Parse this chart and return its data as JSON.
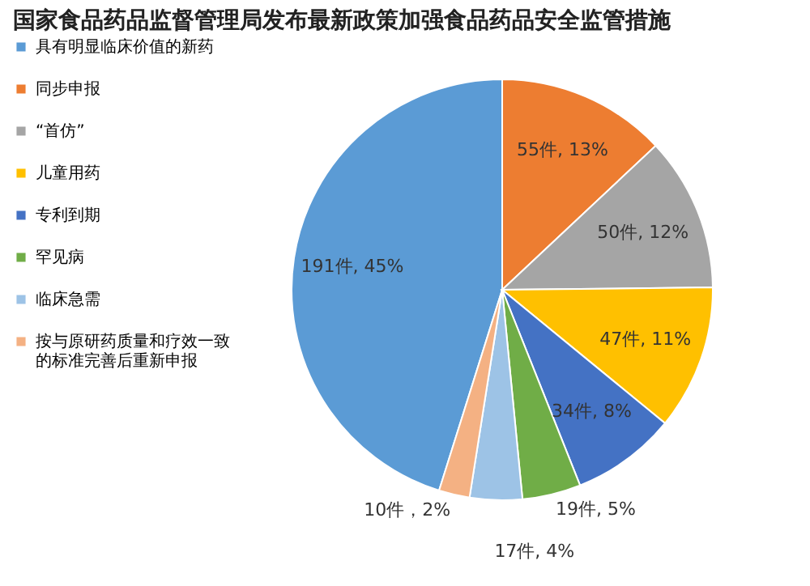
{
  "chart_data": {
    "type": "pie",
    "title": "国家食品药品监督管理局发布最新政策加强食品药品安全监管措施",
    "categories": [
      "具有明显临床价值的新药",
      "同步申报",
      "“首仿”",
      "儿童用药",
      "专利到期",
      "罕见病",
      "临床急需",
      "按与原研药质量和疗效一致的标准完善后重新申报"
    ],
    "values": [
      191,
      55,
      50,
      47,
      34,
      19,
      17,
      10
    ],
    "colors": [
      "#5b9bd5",
      "#ed7d31",
      "#a5a5a5",
      "#ffc000",
      "#4472c4",
      "#70ad47",
      "#9dc3e6",
      "#f4b183"
    ],
    "value_labels": [
      "191件, 45%",
      "55件, 13%",
      "50件, 12%",
      "47件, 11%",
      "34件, 8%",
      "19件, 5%",
      "17件, 4%",
      "10件，2%"
    ],
    "legend": "left"
  }
}
